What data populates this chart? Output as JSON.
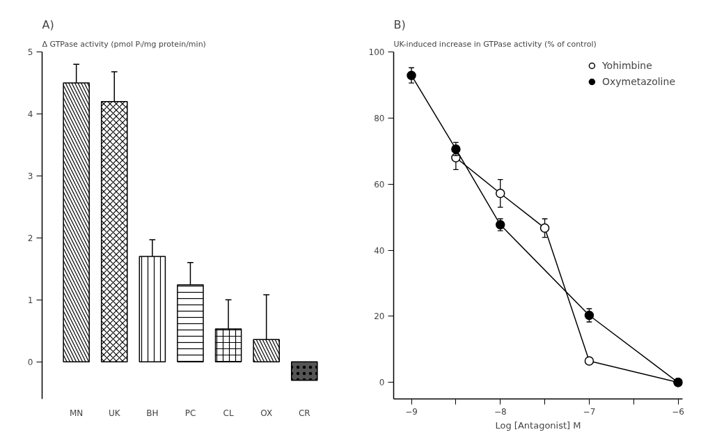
{
  "chart_data": [
    {
      "type": "bar",
      "title": "A)",
      "ylabel": "Δ GTPase activity (pmol Pᵢ/mg protein/min)",
      "categories": [
        "MN",
        "UK",
        "BH",
        "PC",
        "CL",
        "OX",
        "CR"
      ],
      "values": [
        4.5,
        4.2,
        1.7,
        1.24,
        0.53,
        0.36,
        -0.3
      ],
      "errors": [
        [
          4.5,
          4.8
        ],
        [
          4.2,
          4.68
        ],
        [
          1.7,
          1.97
        ],
        [
          1.24,
          1.6
        ],
        [
          0.53,
          1.0
        ],
        [
          0.36,
          1.08
        ],
        null
      ],
      "colors": [
        "#ffffff",
        "#ffffff",
        "#ffffff",
        "#ffffff",
        "#ffffff",
        "#ffffff",
        "#555555"
      ],
      "ylim": [
        -0.6,
        5
      ],
      "yticks": [
        0,
        1,
        2,
        3,
        4,
        5
      ],
      "grid": false
    },
    {
      "type": "line",
      "title": "B)",
      "ylabel": "UK-induced increase in GTPase activity (% of control)",
      "xlabel": "Log [Antagonist] M",
      "marker": "circle",
      "legend": "top right",
      "grid": false,
      "xlim": [
        -9.2,
        -5.95
      ],
      "xticks": [
        -9,
        {
          "value": -8.5,
          "label": null
        },
        -8,
        {
          "value": -7.5,
          "label": null
        },
        -7,
        {
          "value": -6.5,
          "label": null
        },
        -6
      ],
      "ylim": [
        -5,
        100
      ],
      "yticks": [
        0,
        20,
        40,
        60,
        80,
        100
      ],
      "series": [
        {
          "name": "Yohimbine",
          "color": "#ffffff",
          "x": [
            -8.5,
            -8,
            -7.5,
            -7,
            -6
          ],
          "values": [
            68,
            57.2,
            46.7,
            6.5,
            0
          ],
          "errors": [
            3.6,
            4.2,
            2.8,
            null,
            null
          ]
        },
        {
          "name": "Oxymetazoline",
          "color": "#000000",
          "x": [
            -9,
            -8.5,
            -8,
            -7,
            -6
          ],
          "values": [
            92.9,
            70.6,
            47.7,
            20.3,
            0
          ],
          "errors": [
            2.3,
            2,
            1.8,
            2,
            null
          ]
        }
      ]
    }
  ]
}
